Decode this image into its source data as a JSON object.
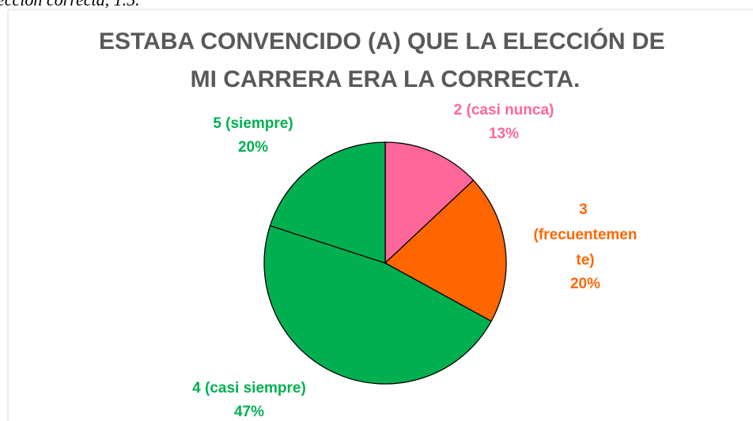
{
  "caption": "ección correcta, 1.5.",
  "chart_data": {
    "type": "pie",
    "title": "ESTABA CONVENCIDO (A) QUE LA ELECCIÓN DE MI CARRERA ERA LA CORRECTA.",
    "categories": [
      "2 (casi nunca)",
      "3 (frecuentemente)",
      "4 (casi siempre)",
      "5 (siempre)"
    ],
    "values": [
      13,
      20,
      47,
      20
    ],
    "value_labels": [
      "13%",
      "20%",
      "47%",
      "20%"
    ],
    "colors": [
      "#ff6699",
      "#ff6600",
      "#00b050",
      "#00b050"
    ]
  }
}
